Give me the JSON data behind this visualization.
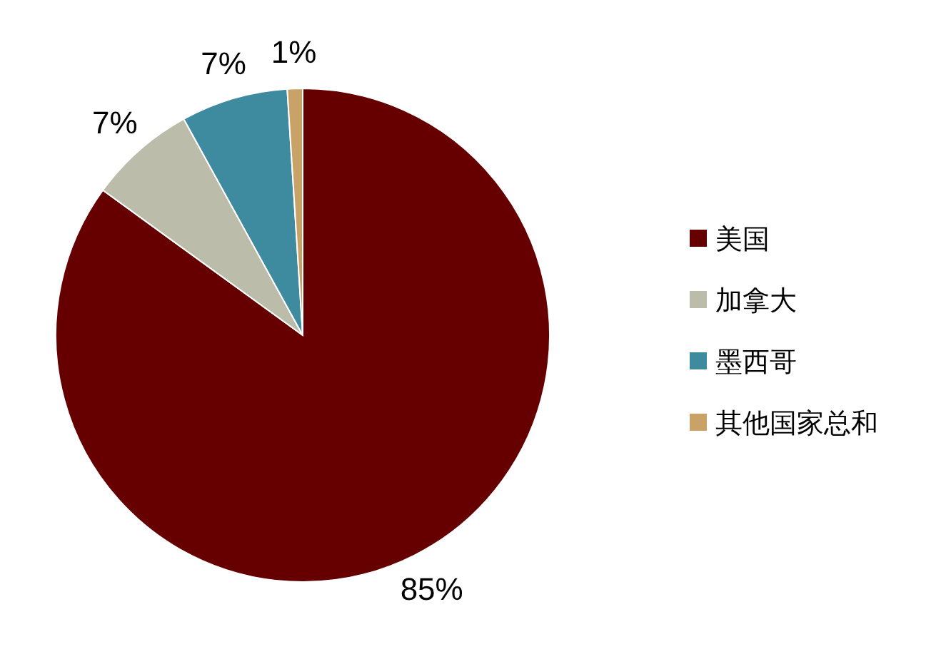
{
  "chart_data": {
    "type": "pie",
    "categories": [
      "美国",
      "加拿大",
      "墨西哥",
      "其他国家总和"
    ],
    "values": [
      85,
      7,
      7,
      1
    ],
    "colors": [
      "#660000",
      "#bcbcaa",
      "#3e8a9e",
      "#c8a266"
    ],
    "value_labels": [
      "85%",
      "7%",
      "7%",
      "1%"
    ],
    "legend": "right"
  }
}
